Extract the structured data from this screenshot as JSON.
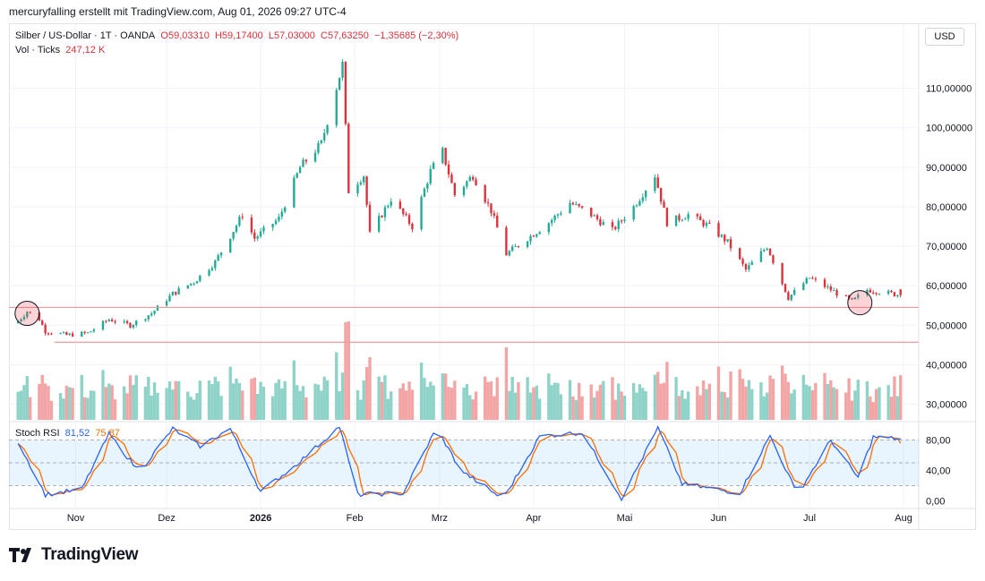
{
  "header": {
    "text": "mercuryfalling erstellt mit TradingView.com, Aug 01, 2026 09:27 UTC-4"
  },
  "legend": {
    "symbol": "Silber / US-Dollar · 1T · OANDA",
    "open": "O59,03310",
    "high": "H59,17400",
    "low": "L57,03000",
    "close": "C57,63250",
    "change": "−1,35685 (−2,30%)",
    "vol_label": "Vol · Ticks",
    "vol_value": "247,12 K",
    "stoch_label": "Stoch RSI",
    "stoch_k": "81,52",
    "stoch_d": "75,87"
  },
  "currency_button": "USD",
  "brand": "TradingView",
  "colors": {
    "up": "#22ab94",
    "down": "#e0303a",
    "vol_up": "#8fd3c8",
    "vol_down": "#f3a5a5",
    "k_line": "#2962ff",
    "d_line": "#ff6d00",
    "hline": "#ef9a9a"
  },
  "chart_data": [
    {
      "type": "candlestick",
      "title": "Silber / US-Dollar · 1T · OANDA",
      "ylabel": "USD",
      "y_ticks": [
        "110,00000",
        "100,00000",
        "90,00000",
        "80,00000",
        "70,00000",
        "60,00000",
        "50,00000",
        "40,00000",
        "30,00000"
      ],
      "x_ticks": [
        "Nov",
        "Dez",
        "2026",
        "Feb",
        "Mrz",
        "Apr",
        "Mai",
        "Jun",
        "Jul",
        "Aug"
      ],
      "ylim": [
        28,
        118
      ],
      "approx_close_path": [
        {
          "date": "2025-10-13",
          "close": 51
        },
        {
          "date": "2025-10-16",
          "close": 53.5
        },
        {
          "date": "2025-10-20",
          "close": 51.5
        },
        {
          "date": "2025-10-22",
          "close": 48.5
        },
        {
          "date": "2025-10-29",
          "close": 47.5
        },
        {
          "date": "2025-11-05",
          "close": 48
        },
        {
          "date": "2025-11-12",
          "close": 51.5
        },
        {
          "date": "2025-11-19",
          "close": 50
        },
        {
          "date": "2025-11-26",
          "close": 53
        },
        {
          "date": "2025-12-03",
          "close": 58
        },
        {
          "date": "2025-12-10",
          "close": 61
        },
        {
          "date": "2025-12-17",
          "close": 66
        },
        {
          "date": "2025-12-26",
          "close": 78
        },
        {
          "date": "2025-12-30",
          "close": 72
        },
        {
          "date": "2026-01-07",
          "close": 77
        },
        {
          "date": "2026-01-14",
          "close": 90
        },
        {
          "date": "2026-01-21",
          "close": 96
        },
        {
          "date": "2026-01-28",
          "close": 116
        },
        {
          "date": "2026-01-30",
          "close": 84
        },
        {
          "date": "2026-02-04",
          "close": 88
        },
        {
          "date": "2026-02-06",
          "close": 73
        },
        {
          "date": "2026-02-13",
          "close": 82
        },
        {
          "date": "2026-02-20",
          "close": 75
        },
        {
          "date": "2026-02-26",
          "close": 89
        },
        {
          "date": "2026-03-02",
          "close": 94
        },
        {
          "date": "2026-03-06",
          "close": 83
        },
        {
          "date": "2026-03-12",
          "close": 88
        },
        {
          "date": "2026-03-18",
          "close": 79
        },
        {
          "date": "2026-03-23",
          "close": 68
        },
        {
          "date": "2026-03-30",
          "close": 72
        },
        {
          "date": "2026-04-06",
          "close": 76
        },
        {
          "date": "2026-04-13",
          "close": 81
        },
        {
          "date": "2026-04-20",
          "close": 78
        },
        {
          "date": "2026-04-27",
          "close": 74
        },
        {
          "date": "2026-05-04",
          "close": 80
        },
        {
          "date": "2026-05-11",
          "close": 88
        },
        {
          "date": "2026-05-15",
          "close": 76
        },
        {
          "date": "2026-05-22",
          "close": 78
        },
        {
          "date": "2026-05-29",
          "close": 75
        },
        {
          "date": "2026-06-04",
          "close": 71
        },
        {
          "date": "2026-06-10",
          "close": 64
        },
        {
          "date": "2026-06-17",
          "close": 70
        },
        {
          "date": "2026-06-24",
          "close": 57
        },
        {
          "date": "2026-07-01",
          "close": 62
        },
        {
          "date": "2026-07-08",
          "close": 59
        },
        {
          "date": "2026-07-15",
          "close": 56
        },
        {
          "date": "2026-07-20",
          "close": 59
        },
        {
          "date": "2026-07-24",
          "close": 58.5
        },
        {
          "date": "2026-07-31",
          "close": 57.63
        }
      ],
      "support_lines": [
        54.5,
        45.7
      ],
      "circled_dates": [
        "2025-10-16",
        "2026-07-17"
      ]
    },
    {
      "type": "bar",
      "title": "Vol · Ticks",
      "note": "volume bars colored by candle direction, scale not printed"
    },
    {
      "type": "line",
      "title": "Stoch RSI",
      "y_ticks": [
        "80,00",
        "40,00",
        "0,00"
      ],
      "ylim": [
        -5,
        100
      ],
      "bands": [
        80,
        50,
        20
      ],
      "series": [
        {
          "name": "81,52"
        },
        {
          "name": "75,87"
        }
      ],
      "approx_k_path": [
        {
          "date": "2025-10-13",
          "v": 78
        },
        {
          "date": "2025-10-22",
          "v": 8
        },
        {
          "date": "2025-11-03",
          "v": 15
        },
        {
          "date": "2025-11-12",
          "v": 88
        },
        {
          "date": "2025-11-22",
          "v": 38
        },
        {
          "date": "2025-12-03",
          "v": 95
        },
        {
          "date": "2025-12-12",
          "v": 72
        },
        {
          "date": "2025-12-22",
          "v": 95
        },
        {
          "date": "2026-01-01",
          "v": 12
        },
        {
          "date": "2026-01-12",
          "v": 45
        },
        {
          "date": "2026-01-27",
          "v": 98
        },
        {
          "date": "2026-02-02",
          "v": 8
        },
        {
          "date": "2026-02-17",
          "v": 10
        },
        {
          "date": "2026-02-28",
          "v": 96
        },
        {
          "date": "2026-03-08",
          "v": 40
        },
        {
          "date": "2026-03-22",
          "v": 2
        },
        {
          "date": "2026-04-03",
          "v": 85
        },
        {
          "date": "2026-04-17",
          "v": 90
        },
        {
          "date": "2026-04-30",
          "v": 3
        },
        {
          "date": "2026-05-12",
          "v": 96
        },
        {
          "date": "2026-05-20",
          "v": 22
        },
        {
          "date": "2026-06-08",
          "v": 10
        },
        {
          "date": "2026-06-18",
          "v": 86
        },
        {
          "date": "2026-06-27",
          "v": 8
        },
        {
          "date": "2026-07-08",
          "v": 80
        },
        {
          "date": "2026-07-17",
          "v": 30
        },
        {
          "date": "2026-07-22",
          "v": 84
        },
        {
          "date": "2026-07-31",
          "v": 81.52
        }
      ]
    }
  ]
}
